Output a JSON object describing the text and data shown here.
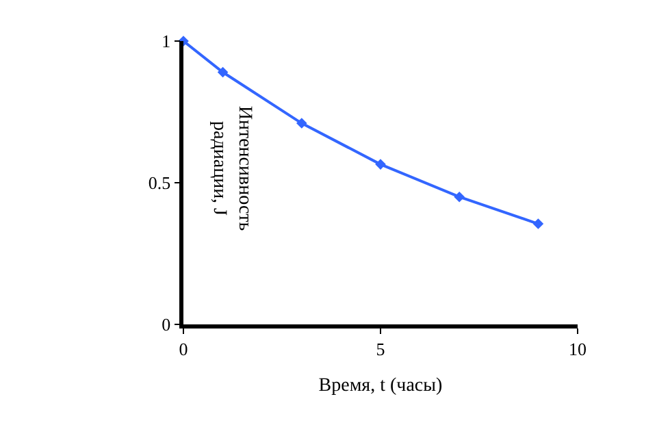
{
  "chart_data": {
    "type": "line",
    "xlabel": "Время, t (часы)",
    "ylabel": "Интенсивность\nрадиации, J",
    "x": [
      0,
      1,
      3,
      5,
      7,
      9
    ],
    "series": [
      {
        "color": "#3366ff",
        "values": [
          1.0,
          0.89,
          0.71,
          0.565,
          0.45,
          0.355
        ]
      }
    ],
    "xlim": [
      0,
      10
    ],
    "ylim": [
      0,
      1
    ],
    "xticks": [
      0,
      5,
      10
    ],
    "yticks": [
      0,
      0.5,
      1
    ],
    "marker": "diamond",
    "line_style": "solid",
    "grid": false,
    "legend": false
  }
}
